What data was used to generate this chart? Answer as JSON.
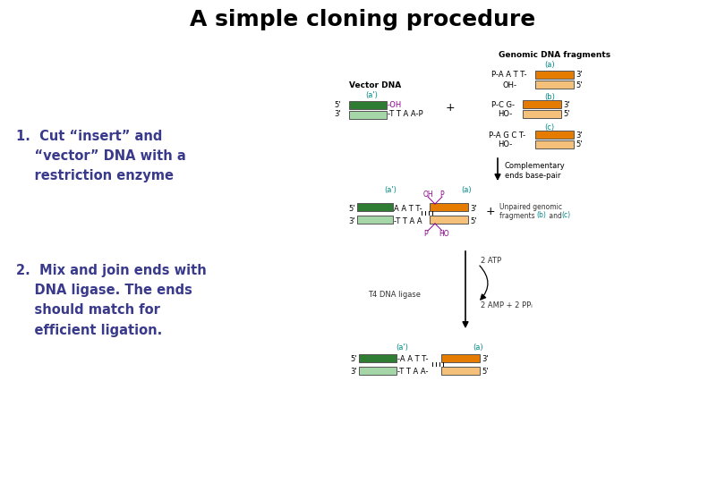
{
  "title": "A simple cloning procedure",
  "title_fontsize": 18,
  "title_color": "#000000",
  "background_color": "#ffffff",
  "text_color_blue": "#3a3a8c",
  "text_color_teal": "#008b8b",
  "text_color_purple": "#8b008b",
  "text_color_black": "#000000",
  "text_color_dark": "#333333",
  "color_green_dark": "#2e7d32",
  "color_green_light": "#a5d6a7",
  "color_orange_dark": "#e57c00",
  "color_orange_light": "#f5c07a",
  "step1_text": "1.  Cut “insert” and\n    “vector” DNA with a\n    restriction enzyme",
  "step2_text": "2.  Mix and join ends with\n    DNA ligase. The ends\n    should match for\n    efficient ligation.",
  "label_genomic": "Genomic DNA fragments",
  "label_vector": "Vector DNA",
  "label_a_prime": "(a')",
  "label_a": "(a)",
  "label_b": "(b)",
  "label_c": "(c)",
  "label_comp": "Complementary\nends base-pair",
  "label_unpaired": "Unpaired genomic\nfragments (b) and (c)",
  "label_t4": "T4 DNA ligase",
  "label_2atp": "2 ATP",
  "label_2amp": "2 AMP + 2 PPᵢ"
}
